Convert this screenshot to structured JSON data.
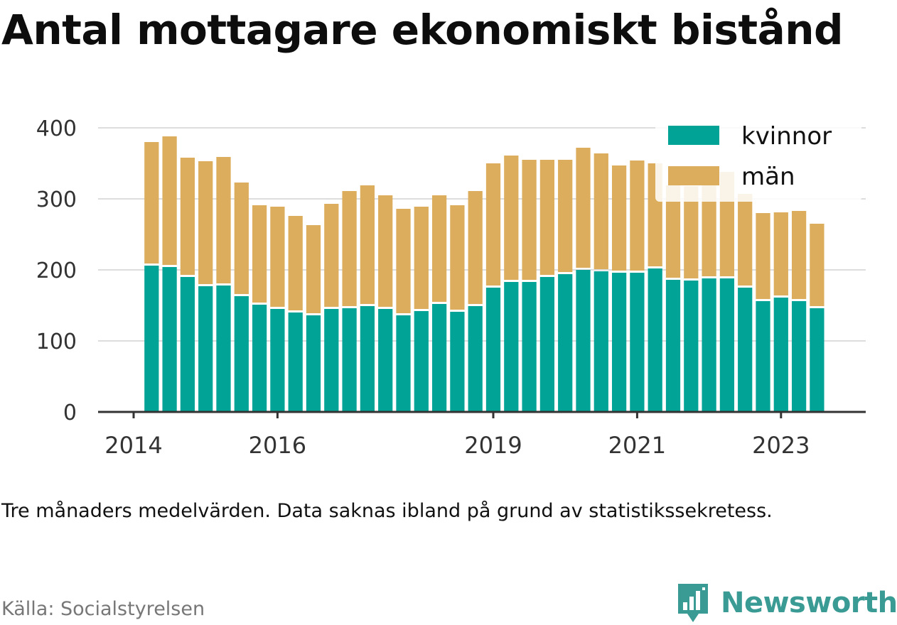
{
  "title": "Antal mottagare ekonomiskt bistånd",
  "note": "Tre månaders medelvärden. Data saknas ibland på grund av statistikssekretess.",
  "source": "Källa: Socialstyrelsen",
  "brand": {
    "name": "Newsworthy",
    "color": "#3a9a94",
    "icon": "bar-chart-speech-bubble-icon"
  },
  "colors": {
    "kvinnor": "#00a396",
    "man": "#dbad5c",
    "grid": "#dddddd",
    "axis": "#333333"
  },
  "chart_data": {
    "type": "bar",
    "stacked": true,
    "ylim": [
      0,
      400
    ],
    "yticks": [
      0,
      100,
      200,
      300,
      400
    ],
    "grid": true,
    "legend_position": "top-right",
    "x_start": 2014.0,
    "x_end": 2024.0,
    "xticks": [
      {
        "year": 2014,
        "label": "2014"
      },
      {
        "year": 2016,
        "label": "2016"
      },
      {
        "year": 2019,
        "label": "2019"
      },
      {
        "year": 2021,
        "label": "2021"
      },
      {
        "year": 2023,
        "label": "2023"
      }
    ],
    "x": [
      2014.25,
      2014.5,
      2014.75,
      2015.0,
      2015.25,
      2015.5,
      2015.75,
      2016.0,
      2016.25,
      2016.5,
      2016.75,
      2017.0,
      2017.25,
      2017.5,
      2017.75,
      2018.0,
      2018.25,
      2018.5,
      2018.75,
      2019.0,
      2019.25,
      2019.5,
      2019.75,
      2020.0,
      2020.25,
      2020.5,
      2020.75,
      2021.0,
      2021.25,
      2021.5,
      2021.75,
      2022.0,
      2022.25,
      2022.5,
      2022.75,
      2023.0,
      2023.25,
      2023.5
    ],
    "series": [
      {
        "name": "kvinnor",
        "key": "kvinnor",
        "values": [
          206,
          204,
          190,
          177,
          178,
          163,
          151,
          145,
          140,
          136,
          145,
          146,
          149,
          145,
          136,
          142,
          152,
          141,
          149,
          175,
          183,
          183,
          190,
          194,
          200,
          198,
          196,
          196,
          202,
          186,
          185,
          188,
          188,
          175,
          156,
          161,
          156,
          146
        ]
      },
      {
        "name": "män",
        "key": "man",
        "values": [
          174,
          184,
          168,
          176,
          181,
          160,
          140,
          144,
          136,
          127,
          148,
          165,
          170,
          160,
          150,
          147,
          153,
          150,
          162,
          175,
          178,
          172,
          165,
          161,
          172,
          166,
          151,
          158,
          148,
          133,
          133,
          142,
          150,
          132,
          124,
          120,
          127,
          119
        ]
      }
    ]
  }
}
